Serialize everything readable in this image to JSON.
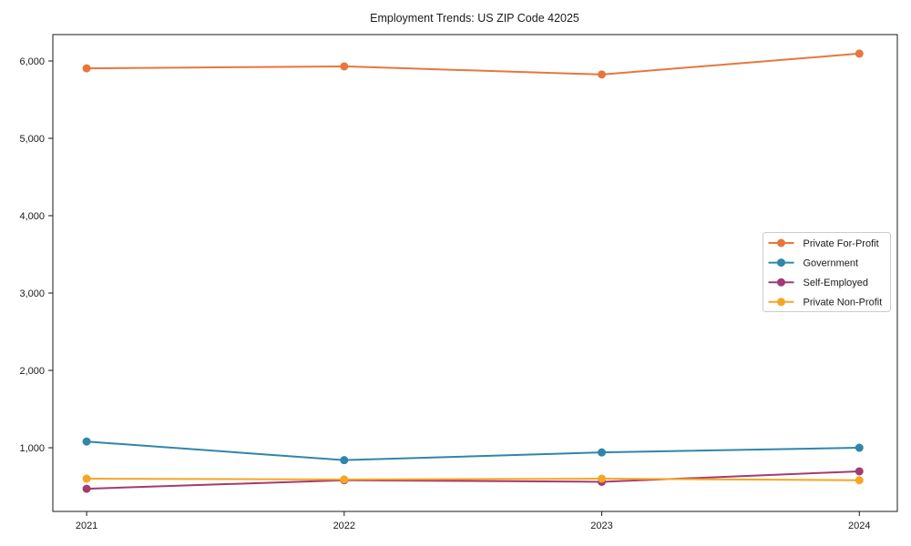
{
  "chart_data": {
    "type": "line",
    "title": "Employment Trends: US ZIP Code 42025",
    "xlabel": "",
    "ylabel": "",
    "categories": [
      "2021",
      "2022",
      "2023",
      "2024"
    ],
    "series": [
      {
        "name": "Private For-Profit",
        "color": "#E8763C",
        "values": [
          5905,
          5930,
          5825,
          6095
        ]
      },
      {
        "name": "Government",
        "color": "#2E86AB",
        "values": [
          1080,
          840,
          940,
          1000
        ]
      },
      {
        "name": "Self-Employed",
        "color": "#A23B72",
        "values": [
          470,
          580,
          560,
          695
        ]
      },
      {
        "name": "Private Non-Profit",
        "color": "#F5A623",
        "values": [
          600,
          590,
          600,
          580
        ]
      }
    ],
    "y_ticks": [
      1000,
      2000,
      3000,
      4000,
      5000,
      6000
    ],
    "y_tick_labels": [
      "1,000",
      "2,000",
      "3,000",
      "4,000",
      "5,000",
      "6,000"
    ],
    "ylim": [
      177,
      6341
    ],
    "grid": false,
    "legend_position": "right-middle",
    "marker": "circle",
    "axis_color": "#1a1a1a",
    "legend_border_color": "#cccccc",
    "background_color": "#ffffff"
  }
}
